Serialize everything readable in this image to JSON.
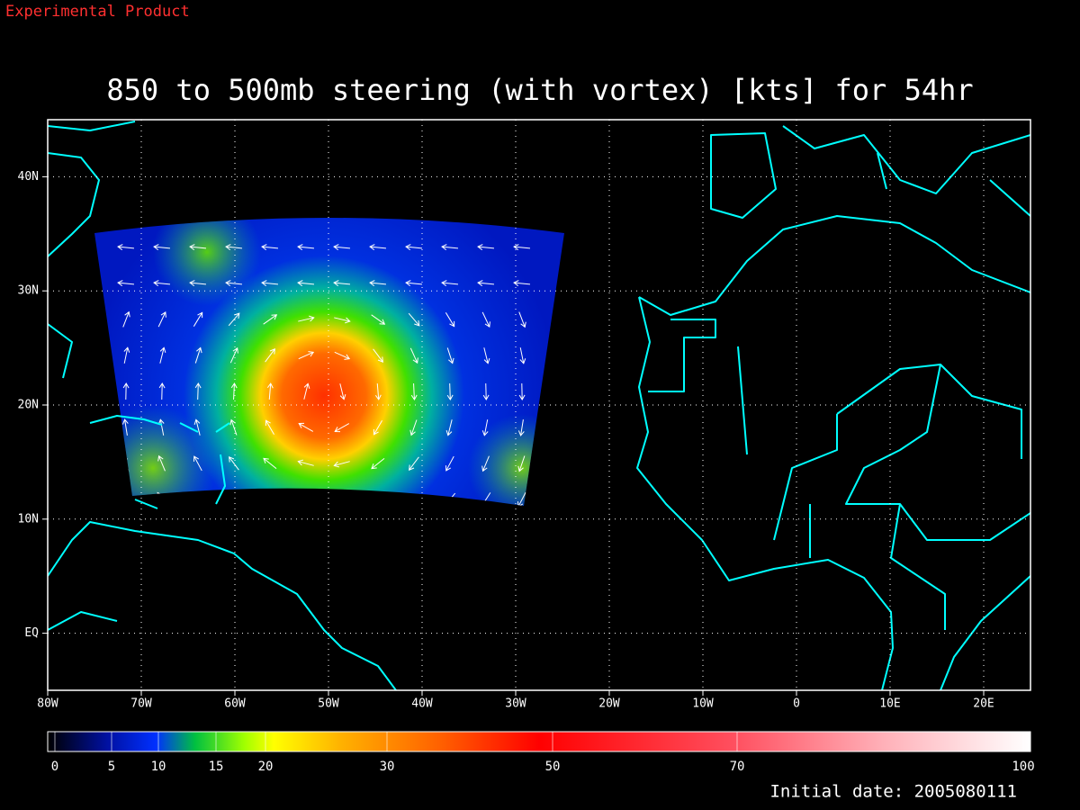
{
  "header": {
    "label": "Experimental Product"
  },
  "title": "850 to 500mb steering (with vortex) [kts] for 54hr",
  "map": {
    "xlim": [
      -80,
      25
    ],
    "ylim": [
      -5,
      45
    ],
    "xticks": [
      {
        "value": -80,
        "label": "80W"
      },
      {
        "value": -70,
        "label": "70W"
      },
      {
        "value": -60,
        "label": "60W"
      },
      {
        "value": -50,
        "label": "50W"
      },
      {
        "value": -40,
        "label": "40W"
      },
      {
        "value": -30,
        "label": "30W"
      },
      {
        "value": -20,
        "label": "20W"
      },
      {
        "value": -10,
        "label": "10W"
      },
      0,
      {
        "value": 10,
        "label": "10E"
      },
      {
        "value": 20,
        "label": "20E"
      }
    ],
    "yticks": [
      {
        "value": 0,
        "label": "EQ"
      },
      {
        "value": 10,
        "label": "10N"
      },
      {
        "value": 20,
        "label": "20N"
      },
      {
        "value": 30,
        "label": "30N"
      },
      {
        "value": 40,
        "label": "40N"
      }
    ],
    "grid": true
  },
  "colorbar": {
    "ticks": [
      0,
      5,
      10,
      15,
      20,
      30,
      50,
      70,
      100
    ]
  },
  "footer": {
    "date_label": "Initial date: 2005080111"
  }
}
